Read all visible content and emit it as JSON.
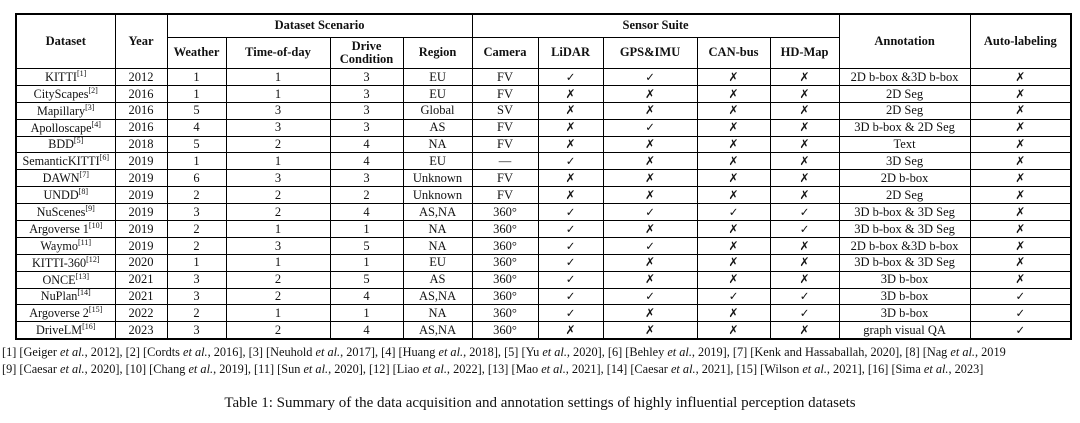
{
  "table": {
    "caption": "Table 1: Summary of the data acquisition and annotation settings of highly influential perception datasets",
    "header": {
      "dataset": "Dataset",
      "year": "Year",
      "scenario_group": "Dataset Scenario",
      "sensor_group": "Sensor Suite",
      "weather": "Weather",
      "time_of_day": "Time-of-day",
      "drive_condition": "Drive Condition",
      "region": "Region",
      "camera": "Camera",
      "lidar": "LiDAR",
      "gps_imu": "GPS&IMU",
      "can_bus": "CAN-bus",
      "hd_map": "HD-Map",
      "annotation": "Annotation",
      "auto_labeling": "Auto-labeling"
    },
    "icons": {
      "check": "✓",
      "cross": "✗"
    },
    "rows": [
      {
        "dataset": "KITTI",
        "ref": "[1]",
        "year": "2012",
        "weather": "1",
        "time_of_day": "1",
        "drive_condition": "3",
        "region": "EU",
        "camera": "FV",
        "lidar": "check",
        "gps_imu": "check",
        "can_bus": "cross",
        "hd_map": "cross",
        "annotation": "2D b-box &3D b-box",
        "auto_labeling": "cross"
      },
      {
        "dataset": "CityScapes",
        "ref": "[2]",
        "year": "2016",
        "weather": "1",
        "time_of_day": "1",
        "drive_condition": "3",
        "region": "EU",
        "camera": "FV",
        "lidar": "cross",
        "gps_imu": "cross",
        "can_bus": "cross",
        "hd_map": "cross",
        "annotation": "2D Seg",
        "auto_labeling": "cross"
      },
      {
        "dataset": "Mapillary",
        "ref": "[3]",
        "year": "2016",
        "weather": "5",
        "time_of_day": "3",
        "drive_condition": "3",
        "region": "Global",
        "camera": "SV",
        "lidar": "cross",
        "gps_imu": "cross",
        "can_bus": "cross",
        "hd_map": "cross",
        "annotation": "2D Seg",
        "auto_labeling": "cross"
      },
      {
        "dataset": "Apolloscape",
        "ref": "[4]",
        "year": "2016",
        "weather": "4",
        "time_of_day": "3",
        "drive_condition": "3",
        "region": "AS",
        "camera": "FV",
        "lidar": "cross",
        "gps_imu": "check",
        "can_bus": "cross",
        "hd_map": "cross",
        "annotation": "3D b-box & 2D Seg",
        "auto_labeling": "cross"
      },
      {
        "dataset": "BDD",
        "ref": "[5]",
        "year": "2018",
        "weather": "5",
        "time_of_day": "2",
        "drive_condition": "4",
        "region": "NA",
        "camera": "FV",
        "lidar": "cross",
        "gps_imu": "cross",
        "can_bus": "cross",
        "hd_map": "cross",
        "annotation": "Text",
        "auto_labeling": "cross"
      },
      {
        "dataset": "SemanticKITTI",
        "ref": "[6]",
        "year": "2019",
        "weather": "1",
        "time_of_day": "1",
        "drive_condition": "4",
        "region": "EU",
        "camera": "—",
        "lidar": "check",
        "gps_imu": "cross",
        "can_bus": "cross",
        "hd_map": "cross",
        "annotation": "3D Seg",
        "auto_labeling": "cross"
      },
      {
        "dataset": "DAWN",
        "ref": "[7]",
        "year": "2019",
        "weather": "6",
        "time_of_day": "3",
        "drive_condition": "3",
        "region": "Unknown",
        "camera": "FV",
        "lidar": "cross",
        "gps_imu": "cross",
        "can_bus": "cross",
        "hd_map": "cross",
        "annotation": "2D b-box",
        "auto_labeling": "cross"
      },
      {
        "dataset": "UNDD",
        "ref": "[8]",
        "year": "2019",
        "weather": "2",
        "time_of_day": "2",
        "drive_condition": "2",
        "region": "Unknown",
        "camera": "FV",
        "lidar": "cross",
        "gps_imu": "cross",
        "can_bus": "cross",
        "hd_map": "cross",
        "annotation": "2D Seg",
        "auto_labeling": "cross"
      },
      {
        "dataset": "NuScenes",
        "ref": "[9]",
        "year": "2019",
        "weather": "3",
        "time_of_day": "2",
        "drive_condition": "4",
        "region": "AS,NA",
        "camera": "360°",
        "lidar": "check",
        "gps_imu": "check",
        "can_bus": "check",
        "hd_map": "check",
        "annotation": "3D b-box & 3D Seg",
        "auto_labeling": "cross"
      },
      {
        "dataset": "Argoverse 1",
        "ref": "[10]",
        "year": "2019",
        "weather": "2",
        "time_of_day": "1",
        "drive_condition": "1",
        "region": "NA",
        "camera": "360°",
        "lidar": "check",
        "gps_imu": "cross",
        "can_bus": "cross",
        "hd_map": "check",
        "annotation": "3D b-box & 3D Seg",
        "auto_labeling": "cross"
      },
      {
        "dataset": "Waymo",
        "ref": "[11]",
        "year": "2019",
        "weather": "2",
        "time_of_day": "3",
        "drive_condition": "5",
        "region": "NA",
        "camera": "360°",
        "lidar": "check",
        "gps_imu": "check",
        "can_bus": "cross",
        "hd_map": "cross",
        "annotation": "2D b-box &3D b-box",
        "auto_labeling": "cross"
      },
      {
        "dataset": "KITTI-360",
        "ref": "[12]",
        "year": "2020",
        "weather": "1",
        "time_of_day": "1",
        "drive_condition": "1",
        "region": "EU",
        "camera": "360°",
        "lidar": "check",
        "gps_imu": "cross",
        "can_bus": "cross",
        "hd_map": "cross",
        "annotation": "3D b-box & 3D Seg",
        "auto_labeling": "cross"
      },
      {
        "dataset": "ONCE",
        "ref": "[13]",
        "year": "2021",
        "weather": "3",
        "time_of_day": "2",
        "drive_condition": "5",
        "region": "AS",
        "camera": "360°",
        "lidar": "check",
        "gps_imu": "cross",
        "can_bus": "cross",
        "hd_map": "cross",
        "annotation": "3D b-box",
        "auto_labeling": "cross"
      },
      {
        "dataset": "NuPlan",
        "ref": "[14]",
        "year": "2021",
        "weather": "3",
        "time_of_day": "2",
        "drive_condition": "4",
        "region": "AS,NA",
        "camera": "360°",
        "lidar": "check",
        "gps_imu": "check",
        "can_bus": "check",
        "hd_map": "check",
        "annotation": "3D b-box",
        "auto_labeling": "check"
      },
      {
        "dataset": "Argoverse 2",
        "ref": "[15]",
        "year": "2022",
        "weather": "2",
        "time_of_day": "1",
        "drive_condition": "1",
        "region": "NA",
        "camera": "360°",
        "lidar": "check",
        "gps_imu": "cross",
        "can_bus": "cross",
        "hd_map": "check",
        "annotation": "3D b-box",
        "auto_labeling": "check"
      },
      {
        "dataset": "DriveLM",
        "ref": "[16]",
        "year": "2023",
        "weather": "3",
        "time_of_day": "2",
        "drive_condition": "4",
        "region": "AS,NA",
        "camera": "360°",
        "lidar": "cross",
        "gps_imu": "cross",
        "can_bus": "cross",
        "hd_map": "cross",
        "annotation": "graph visual QA",
        "auto_labeling": "check"
      }
    ]
  },
  "footnotes": {
    "line1": "[1] [Geiger et al., 2012], [2] [Cordts et al., 2016], [3] [Neuhold et al., 2017], [4] [Huang et al., 2018], [5] [Yu et al., 2020], [6] [Behley et al., 2019], [7] [Kenk and Hassaballah, 2020], [8] [Nag et al., 2019",
    "line2": "[9] [Caesar et al., 2020], [10] [Chang et al., 2019], [11] [Sun et al., 2020], [12] [Liao et al., 2022], [13] [Mao et al., 2021], [14] [Caesar et al., 2021], [15] [Wilson et al., 2021], [16] [Sima et al., 2023]"
  }
}
